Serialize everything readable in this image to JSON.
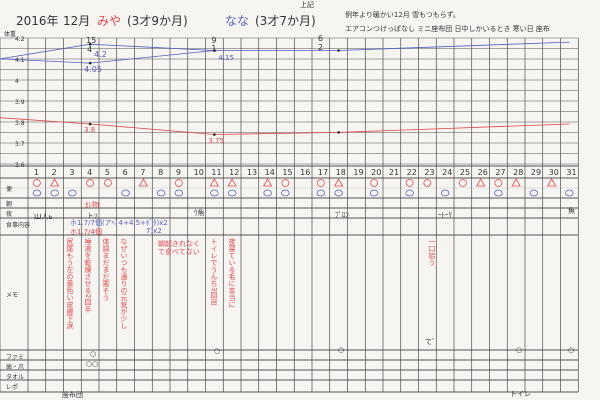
{
  "header": {
    "year": "2016年",
    "month": "12月",
    "child1_name": "みや",
    "child1_age": "(3才9か月)",
    "child2_name": "なな",
    "child2_age": "(3才7か月)",
    "note_top": "上記",
    "note_line1": "例年より暖かい12月 雪もつもらず。",
    "note_line2": "エアコンつけっぱなし ミニ座布団 日中しかいるとき 寒い日 座布"
  },
  "weight_labels": [
    "体重",
    "4.2",
    "4.1",
    "4",
    "3.9",
    "3.8",
    "3.7",
    "3.6"
  ],
  "weight_annotations": {
    "d4_top": "15",
    "d4_mid": "4",
    "d11_top": "9",
    "d11_mid": "1",
    "d17_top": "6",
    "d17_mid": "2",
    "blue_a": "4.2",
    "blue_b": "4.05",
    "blue_c": "4.15",
    "red_a": "3.8",
    "red_b": "3.75"
  },
  "chart_data": {
    "type": "line",
    "x": "day",
    "series": [
      {
        "color": "#5560c0",
        "points": [
          [
            0,
            4.11
          ],
          [
            4,
            4.18
          ],
          [
            11,
            4.15
          ],
          [
            18,
            4.15
          ],
          [
            31,
            4.19
          ]
        ]
      },
      {
        "color": "#5560c0",
        "points": [
          [
            0,
            4.11
          ],
          [
            4,
            4.09
          ],
          [
            11,
            4.15
          ]
        ]
      },
      {
        "color": "#e0474c",
        "points": [
          [
            0,
            3.83
          ],
          [
            4,
            3.8
          ],
          [
            11,
            3.75
          ],
          [
            18,
            3.76
          ],
          [
            31,
            3.8
          ]
        ]
      }
    ],
    "ylim": [
      3.6,
      4.2
    ]
  },
  "days": [
    "1",
    "2",
    "3",
    "4",
    "5",
    "6",
    "7",
    "8",
    "9",
    "10",
    "11",
    "12",
    "13",
    "14",
    "15",
    "16",
    "17",
    "18",
    "19",
    "20",
    "21",
    "22",
    "23",
    "24",
    "25",
    "26",
    "27",
    "28",
    "29",
    "30",
    "31"
  ],
  "row_labels": {
    "stool": "便",
    "morning": "朝",
    "night": "夜",
    "meal": "食事内容",
    "memo": "メモ",
    "famima": "ファミ",
    "teeth_nails": "歯・爪",
    "towel": "タオル",
    "report": "レポ"
  },
  "stool_red": {
    "1": "o",
    "2": "t",
    "4": "o",
    "5": "o",
    "7": "t",
    "9": "o",
    "11": "t",
    "12": "t",
    "14": "t",
    "15": "o",
    "17": "o",
    "18": "t",
    "20": "o",
    "22": "o",
    "23": "o",
    "25": "o",
    "26": "t",
    "27": "o",
    "28": "t",
    "30": "t"
  },
  "stool_blue": [
    "1",
    "2",
    "3",
    "6",
    "8",
    "9",
    "11",
    "12",
    "14",
    "15",
    "17",
    "18",
    "20",
    "22",
    "24",
    "27",
    "29",
    "31"
  ],
  "entries": {
    "night_d2": "Ш人ь",
    "morning_d4": "ｶﾚ物",
    "night_d4": "トｿ",
    "night_d10": "ｳ魚",
    "night_d18": "ﾌﾟﾛﾝ",
    "night_d24": "ｰﾄｰﾘ",
    "night_d31": "魚",
    "meal_blue": "ホ1.7/7個(アﾍﾞ4+4.5+ﾎﾞﾀ)x2",
    "meal_red": "ホ1.7/4個",
    "meal_x2": "7)x2"
  },
  "memos": [
    "尻尾もう左の黄色い皮膚下涙",
    "唾液を乾燥させる2回半",
    "体調まだまだ悪そう",
    "なぜいつも通りの元気が少し",
    "朝起きれなくて食べてない",
    "トイレでうんち3回目",
    "夜寝ている毛に本当に",
    "一口拾う"
  ],
  "bottom": {
    "famima_d4": "○",
    "teeth_d4": "○○",
    "famima_d11": "○",
    "famima_d18": "○",
    "famima_d28": "○",
    "famima_d31": "○",
    "signature": "座布団",
    "toilet": "トイレ",
    "memo_d24": "て゛"
  }
}
